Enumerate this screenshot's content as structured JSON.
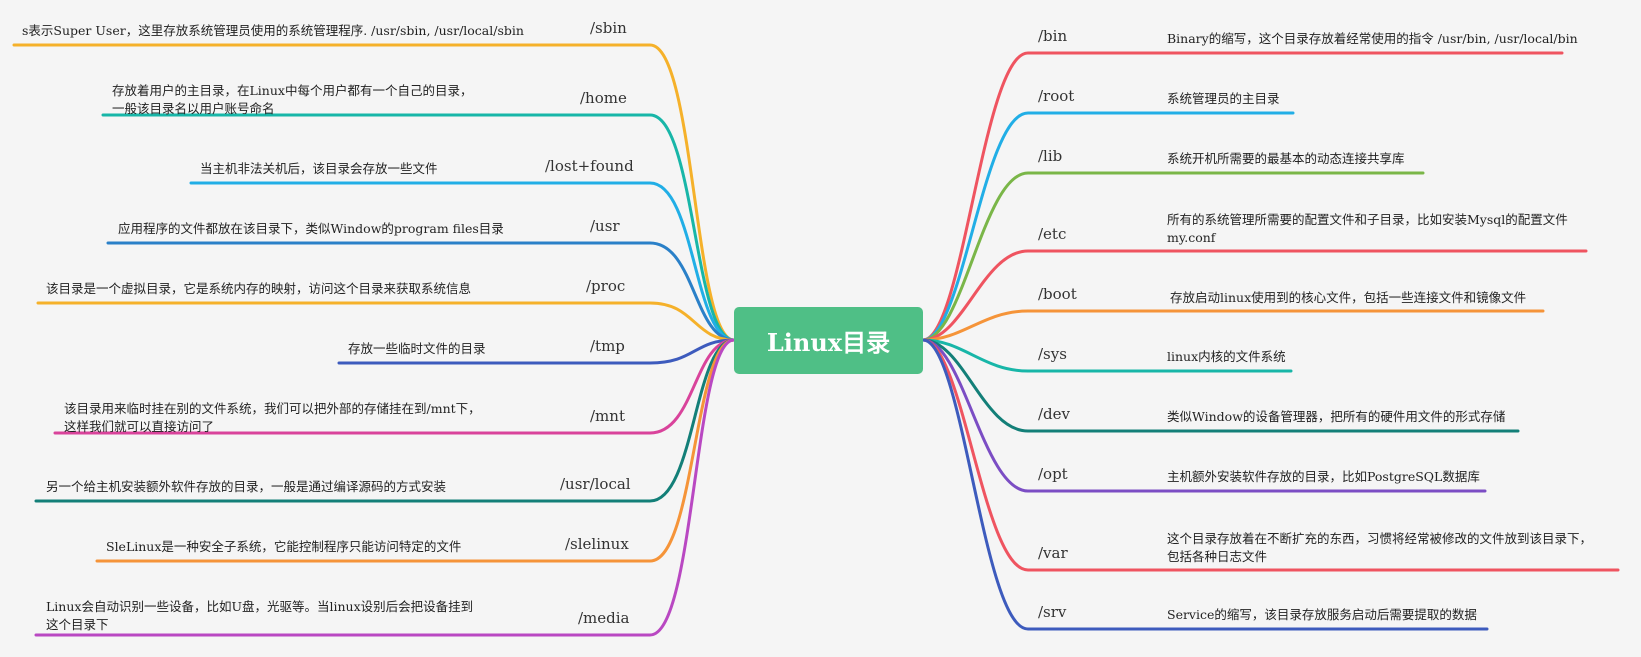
{
  "root": {
    "label": "Linux目录",
    "color": "#4fbf86"
  },
  "left_branches": [
    {
      "name": "/sbin",
      "desc": [
        "s表示Super User，这里存放系统管理员使用的系统管理程序. /usr/sbin, /usr/local/sbin"
      ],
      "color": "#f5b12a"
    },
    {
      "name": "/home",
      "desc": [
        "存放着用户的主目录，在Linux中每个用户都有一个自己的目录，",
        "一般该目录名以用户账号命名"
      ],
      "color": "#18b6a8"
    },
    {
      "name": "/lost+found",
      "desc": [
        "当主机非法关机后，该目录会存放一些文件"
      ],
      "color": "#21aee6"
    },
    {
      "name": "/usr",
      "desc": [
        "应用程序的文件都放在该目录下，类似Window的program files目录"
      ],
      "color": "#2a80c8"
    },
    {
      "name": "/proc",
      "desc": [
        "该目录是一个虚拟目录，它是系统内存的映射，访问这个目录来获取系统信息"
      ],
      "color": "#f5b12a"
    },
    {
      "name": "/tmp",
      "desc": [
        "存放一些临时文件的目录"
      ],
      "color": "#3d5bbd"
    },
    {
      "name": "/mnt",
      "desc": [
        "该目录用来临时挂在别的文件系统，我们可以把外部的存储挂在到/mnt下，",
        "这样我们就可以直接访问了"
      ],
      "color": "#d9439b"
    },
    {
      "name": "/usr/local",
      "desc": [
        "另一个给主机安装额外软件存放的目录，一般是通过编译源码的方式安装"
      ],
      "color": "#137f78"
    },
    {
      "name": "/slelinux",
      "desc": [
        "SleLinux是一种安全子系统，它能控制程序只能访问特定的文件"
      ],
      "color": "#f59439"
    },
    {
      "name": "/media",
      "desc": [
        "Linux会自动识别一些设备，比如U盘，光驱等。当linux设别后会把设备挂到",
        "这个目录下"
      ],
      "color": "#b948c2"
    }
  ],
  "right_branches": [
    {
      "name": "/bin",
      "desc": [
        "Binary的缩写，这个目录存放着经常使用的指令 /usr/bin, /usr/local/bin"
      ],
      "color": "#ef5460"
    },
    {
      "name": "/root",
      "desc": [
        "系统管理员的主目录"
      ],
      "color": "#21aee6"
    },
    {
      "name": "/lib",
      "desc": [
        "系统开机所需要的最基本的动态连接共享库"
      ],
      "color": "#7ab648"
    },
    {
      "name": "/etc",
      "desc": [
        "所有的系统管理所需要的配置文件和子目录，比如安装Mysql的配置文件",
        "my.conf"
      ],
      "color": "#ef5460"
    },
    {
      "name": "/boot",
      "desc": [
        "存放启动linux使用到的核心文件，包括一些连接文件和镜像文件"
      ],
      "color": "#f59439"
    },
    {
      "name": "/sys",
      "desc": [
        "linux内核的文件系统"
      ],
      "color": "#18b6a8"
    },
    {
      "name": "/dev",
      "desc": [
        "类似Window的设备管理器，把所有的硬件用文件的形式存储"
      ],
      "color": "#137f78"
    },
    {
      "name": "/opt",
      "desc": [
        "主机额外安装软件存放的目录，比如PostgreSQL数据库"
      ],
      "color": "#7b4dc4"
    },
    {
      "name": "/var",
      "desc": [
        "这个目录存放着在不断扩充的东西，习惯将经常被修改的文件放到该目录下，",
        "包括各种日志文件"
      ],
      "color": "#ef5460"
    },
    {
      "name": "/srv",
      "desc": [
        "Service的缩写，该目录存放服务启动后需要提取的数据"
      ],
      "color": "#3d5bbd"
    }
  ]
}
